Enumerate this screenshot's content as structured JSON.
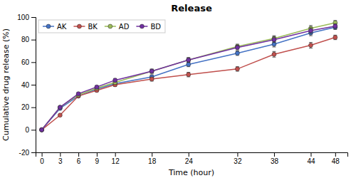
{
  "chart_data": {
    "type": "line",
    "title": "Release",
    "xlabel": "Time (hour)",
    "ylabel": "Cumulative drug release (%)",
    "x": [
      0,
      3,
      6,
      9,
      12,
      18,
      24,
      32,
      38,
      44,
      48
    ],
    "series": [
      {
        "name": "AK",
        "color": "#4472C4",
        "marker": "circle",
        "values": [
          0,
          19,
          30,
          36,
          41,
          47,
          58,
          68,
          76,
          86,
          91
        ],
        "errors": [
          0.3,
          0.8,
          1.0,
          1.2,
          1.5,
          1.8,
          2.0,
          2.0,
          2.5,
          2.5,
          2.0
        ]
      },
      {
        "name": "BK",
        "color": "#C0504D",
        "marker": "circle",
        "values": [
          0,
          13,
          30,
          35,
          40,
          45,
          49,
          54,
          67,
          75,
          82
        ],
        "errors": [
          0.3,
          0.8,
          1.0,
          1.2,
          1.5,
          1.8,
          2.0,
          2.0,
          2.5,
          2.5,
          2.0
        ]
      },
      {
        "name": "AD",
        "color": "#9BBB59",
        "marker": "circle",
        "values": [
          0,
          20,
          31,
          37,
          42,
          52,
          62,
          74,
          81,
          90,
          95
        ],
        "errors": [
          0.3,
          0.8,
          1.0,
          1.2,
          1.5,
          1.8,
          2.0,
          2.0,
          2.5,
          2.5,
          2.0
        ]
      },
      {
        "name": "BD",
        "color": "#7030A0",
        "marker": "circle",
        "values": [
          0,
          20,
          32,
          38,
          44,
          52,
          62,
          73,
          80,
          88,
          92
        ],
        "errors": [
          0.3,
          0.8,
          1.0,
          1.2,
          1.5,
          1.8,
          2.0,
          2.0,
          2.5,
          2.5,
          2.0
        ]
      }
    ],
    "xlim": [
      -1,
      50
    ],
    "xticks": [
      0,
      3,
      6,
      9,
      12,
      18,
      24,
      32,
      38,
      44,
      48
    ],
    "ylim": [
      -20,
      100
    ],
    "yticks": [
      -20,
      0,
      20,
      40,
      60,
      80,
      100
    ],
    "legend": "upper left",
    "grid": false
  }
}
